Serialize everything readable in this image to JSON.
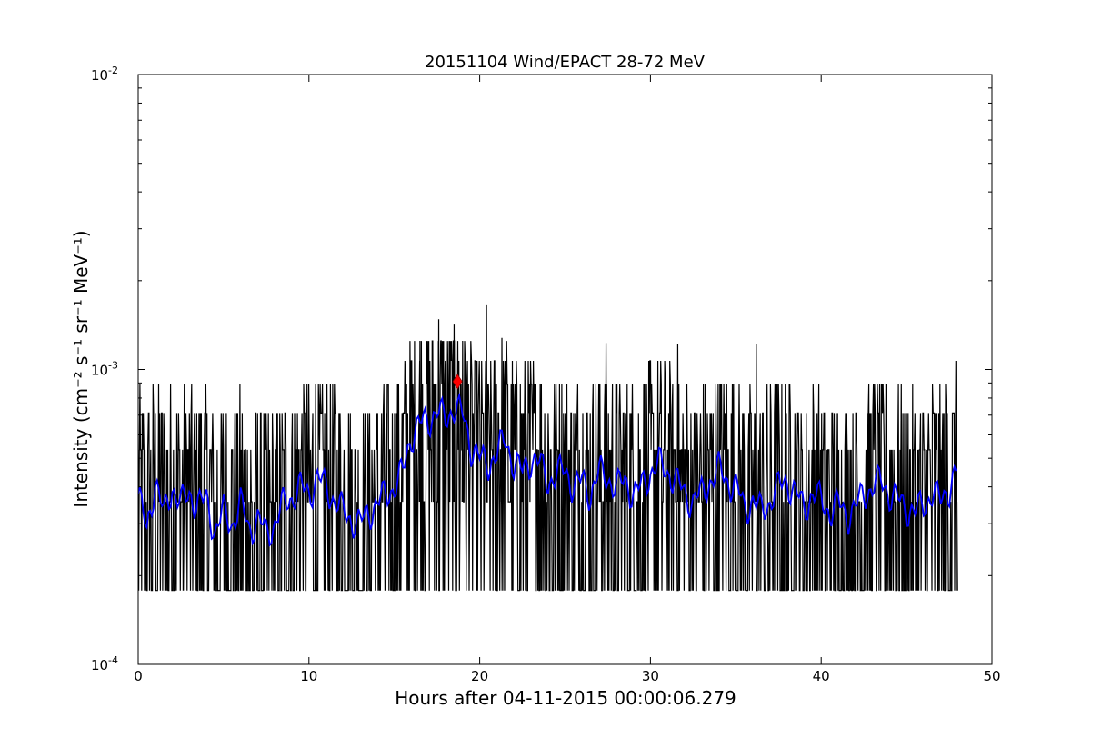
{
  "chart_data": {
    "type": "line",
    "title": "20151104 Wind/EPACT 28-72 MeV",
    "xlabel": "Hours after 04-11-2015 00:00:06.279",
    "ylabel": "Intensity (cm⁻² s⁻¹ sr⁻¹ MeV⁻¹)",
    "xlim": [
      0,
      50
    ],
    "ylim": [
      0.0001,
      0.01
    ],
    "yscale": "log",
    "grid": false,
    "x_ticks": [
      0,
      10,
      20,
      30,
      40,
      50
    ],
    "x_tick_labels": [
      "0",
      "10",
      "20",
      "30",
      "40",
      "50"
    ],
    "y_ticks": [
      0.0001,
      0.001,
      0.01
    ],
    "y_tick_labels": [
      {
        "base": "10",
        "exp": "-4"
      },
      {
        "base": "10",
        "exp": "-3"
      },
      {
        "base": "10",
        "exp": "-2"
      }
    ],
    "cadence_hours": 0.0333,
    "level_values": [
      0.000178,
      0.000356,
      0.000534,
      0.000712,
      0.00089,
      0.00107,
      0.00125
    ],
    "series": [
      {
        "role": "raw intensity",
        "color": "#000000",
        "x_range": [
          0,
          48
        ],
        "noise_floor": 0.000178,
        "peak_values": [
          {
            "x": 17.6,
            "y": 0.00148
          },
          {
            "x": 18.5,
            "y": 0.00142
          },
          {
            "x": 20.4,
            "y": 0.00165
          },
          {
            "x": 21.3,
            "y": 0.00128
          },
          {
            "x": 16.5,
            "y": 0.00125
          },
          {
            "x": 27.4,
            "y": 0.00123
          },
          {
            "x": 36.2,
            "y": 0.00122
          },
          {
            "x": 31.6,
            "y": 0.00122
          },
          {
            "x": 19.0,
            "y": 0.00125
          }
        ]
      },
      {
        "role": "smoothed intensity",
        "color": "#0000ff",
        "points": [
          [
            0.0,
            0.00038
          ],
          [
            0.5,
            0.00028
          ],
          [
            1.0,
            0.00042
          ],
          [
            1.5,
            0.00032
          ],
          [
            2.0,
            0.0004
          ],
          [
            2.5,
            0.00035
          ],
          [
            3.0,
            0.00038
          ],
          [
            3.5,
            0.00035
          ],
          [
            4.0,
            0.00036
          ],
          [
            4.5,
            0.00028
          ],
          [
            5.0,
            0.00033
          ],
          [
            5.5,
            0.0003
          ],
          [
            6.0,
            0.00035
          ],
          [
            6.5,
            0.00029
          ],
          [
            7.0,
            0.00031
          ],
          [
            7.5,
            0.00028
          ],
          [
            8.0,
            0.0003
          ],
          [
            8.5,
            0.00035
          ],
          [
            9.0,
            0.00037
          ],
          [
            9.5,
            0.0004
          ],
          [
            10.0,
            0.00038
          ],
          [
            10.5,
            0.00043
          ],
          [
            11.0,
            0.0004
          ],
          [
            11.5,
            0.00036
          ],
          [
            12.0,
            0.00033
          ],
          [
            12.5,
            0.00031
          ],
          [
            13.0,
            0.0003
          ],
          [
            13.5,
            0.00033
          ],
          [
            14.0,
            0.00035
          ],
          [
            14.5,
            0.00038
          ],
          [
            15.0,
            0.0004
          ],
          [
            15.5,
            0.00045
          ],
          [
            16.0,
            0.0006
          ],
          [
            16.5,
            0.00065
          ],
          [
            17.0,
            0.00068
          ],
          [
            17.5,
            0.00072
          ],
          [
            18.0,
            0.00068
          ],
          [
            18.5,
            0.00075
          ],
          [
            19.0,
            0.0007
          ],
          [
            19.5,
            0.00055
          ],
          [
            20.0,
            0.0005
          ],
          [
            20.5,
            0.00048
          ],
          [
            21.0,
            0.00052
          ],
          [
            21.5,
            0.00058
          ],
          [
            22.0,
            0.00048
          ],
          [
            22.5,
            0.00045
          ],
          [
            23.0,
            0.0005
          ],
          [
            23.5,
            0.00048
          ],
          [
            24.0,
            0.00042
          ],
          [
            24.5,
            0.00044
          ],
          [
            25.0,
            0.00046
          ],
          [
            25.5,
            0.0004
          ],
          [
            26.0,
            0.00042
          ],
          [
            26.5,
            0.00038
          ],
          [
            27.0,
            0.00045
          ],
          [
            27.5,
            0.00043
          ],
          [
            28.0,
            0.0004
          ],
          [
            28.5,
            0.00042
          ],
          [
            29.0,
            0.00038
          ],
          [
            29.5,
            0.0004
          ],
          [
            30.0,
            0.00045
          ],
          [
            30.5,
            0.00048
          ],
          [
            31.0,
            0.00045
          ],
          [
            31.5,
            0.00042
          ],
          [
            32.0,
            0.00038
          ],
          [
            32.5,
            0.00036
          ],
          [
            33.0,
            0.00038
          ],
          [
            33.5,
            0.00042
          ],
          [
            34.0,
            0.00046
          ],
          [
            34.5,
            0.00042
          ],
          [
            35.0,
            0.0004
          ],
          [
            35.5,
            0.00034
          ],
          [
            36.0,
            0.00036
          ],
          [
            36.5,
            0.00033
          ],
          [
            37.0,
            0.00036
          ],
          [
            37.5,
            0.0004
          ],
          [
            38.0,
            0.00042
          ],
          [
            38.5,
            0.00038
          ],
          [
            39.0,
            0.00034
          ],
          [
            39.5,
            0.00038
          ],
          [
            40.0,
            0.00036
          ],
          [
            40.5,
            0.00033
          ],
          [
            41.0,
            0.00035
          ],
          [
            41.5,
            0.00032
          ],
          [
            42.0,
            0.00034
          ],
          [
            42.5,
            0.00038
          ],
          [
            43.0,
            0.0004
          ],
          [
            43.5,
            0.00042
          ],
          [
            44.0,
            0.00038
          ],
          [
            44.5,
            0.00036
          ],
          [
            45.0,
            0.00034
          ],
          [
            45.5,
            0.00033
          ],
          [
            46.0,
            0.00035
          ],
          [
            46.5,
            0.00038
          ],
          [
            47.0,
            0.00036
          ],
          [
            47.5,
            0.0004
          ],
          [
            48.0,
            0.00045
          ]
        ]
      }
    ],
    "marker": {
      "x": 18.7,
      "y": 0.00091,
      "shape": "diamond",
      "color": "#ff0000"
    }
  }
}
